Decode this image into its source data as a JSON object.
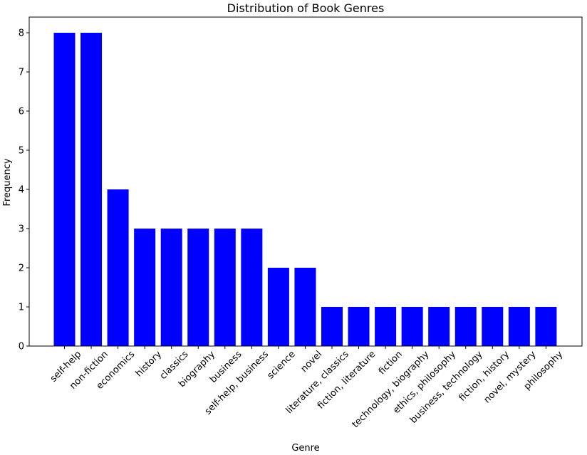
{
  "chart_data": {
    "type": "bar",
    "title": "Distribution of Book Genres",
    "xlabel": "Genre",
    "ylabel": "Frequency",
    "ylim": [
      0,
      8.4
    ],
    "yticks": [
      0,
      1,
      2,
      3,
      4,
      5,
      6,
      7,
      8
    ],
    "bar_color": "#0000ff",
    "grid": false,
    "categories": [
      "self-help",
      "non-fiction",
      "economics",
      "history",
      "classics",
      "biography",
      "business",
      "self-help, business",
      "science",
      "novel",
      "literature, classics",
      "fiction, literature",
      "fiction",
      "technology, biography",
      "ethics, philosophy",
      "business, technology",
      "fiction, history",
      "novel, mystery",
      "philosophy"
    ],
    "values": [
      8,
      8,
      4,
      3,
      3,
      3,
      3,
      3,
      2,
      2,
      1,
      1,
      1,
      1,
      1,
      1,
      1,
      1,
      1
    ]
  }
}
